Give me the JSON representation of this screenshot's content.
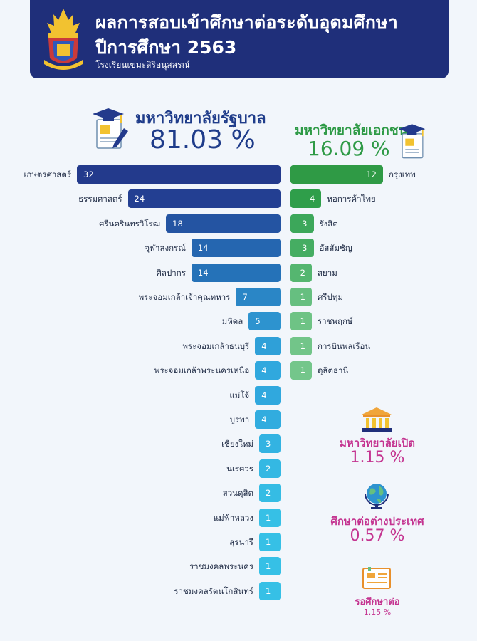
{
  "header": {
    "title_line1": "ผลการสอบเข้าศึกษาต่อระดับอุดมศึกษา",
    "title_line2": "ปีการศึกษา  2563",
    "school": "โรงเรียนเขมะสิริอนุสสรณ์"
  },
  "government": {
    "title": "มหาวิทยาลัยรัฐบาล",
    "percent": "81.03 %"
  },
  "private": {
    "title": "มหาวิทยาลัยเอกชน",
    "percent": "16.09 %"
  },
  "others": [
    {
      "title": "มหาวิทยาลัยเปิด",
      "percent": "1.15 %"
    },
    {
      "title": "ศึกษาต่อต่างประเทศ",
      "percent": "0.57 %"
    },
    {
      "title": "รอศึกษาต่อ",
      "percent": "1.15 %"
    }
  ],
  "chart_data": [
    {
      "type": "bar",
      "orientation": "horizontal",
      "title": "มหาวิทยาลัยรัฐบาล",
      "categories": [
        "เกษตรศาสตร์",
        "ธรรมศาสตร์",
        "ศรีนครินทรวิโรฒ",
        "จุฬาลงกรณ์",
        "ศิลปากร",
        "พระจอมเกล้าเจ้าคุณทหาร",
        "มหิดล",
        "พระจอมเกล้าธนบุรี",
        "พระจอมเกล้าพระนครเหนือ",
        "แม่โจ้",
        "บูรพา",
        "เชียงใหม่",
        "นเรศวร",
        "สวนดุสิต",
        "แม่ฟ้าหลวง",
        "สุรนารี",
        "ราชมงคลพระนคร",
        "ราชมงคลรัตนโกสินทร์"
      ],
      "values": [
        32,
        24,
        18,
        14,
        14,
        7,
        5,
        4,
        4,
        4,
        4,
        3,
        2,
        2,
        1,
        1,
        1,
        1
      ],
      "colors": [
        "#233a8c",
        "#233f92",
        "#2454a2",
        "#2566b0",
        "#2572b8",
        "#2a86c6",
        "#2d93cf",
        "#2fa0d8",
        "#30a8de",
        "#30a8de",
        "#31acdf",
        "#33b3e2",
        "#34b8e3",
        "#35bce4",
        "#36c0e6",
        "#36c0e6",
        "#36c0e6",
        "#36c0e6"
      ]
    },
    {
      "type": "bar",
      "orientation": "horizontal",
      "title": "มหาวิทยาลัยเอกชน",
      "categories": [
        "กรุงเทพ",
        "หอการค้าไทย",
        "รังสิต",
        "อัสสัมชัญ",
        "สยาม",
        "ศรีปทุม",
        "ราชพฤกษ์",
        "การบินพลเรือน",
        "ดุสิตธานี"
      ],
      "values": [
        12,
        4,
        3,
        3,
        2,
        1,
        1,
        1,
        1
      ],
      "colors": [
        "#2f9a45",
        "#2f9e4a",
        "#3ca75a",
        "#45ad62",
        "#55b670",
        "#66bf80",
        "#6ec385",
        "#72c589",
        "#74c68b"
      ]
    }
  ]
}
